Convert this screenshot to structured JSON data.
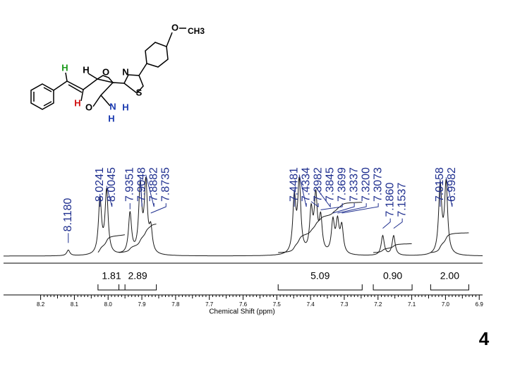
{
  "chart_data": {
    "type": "nmr",
    "x_label": "Chemical Shift (ppm)",
    "xlim": [
      8.31,
      6.89
    ],
    "xticks": [
      8.2,
      8.1,
      {
        "value": 8.0,
        "label": "8.0"
      },
      7.9,
      7.8,
      7.7,
      7.6,
      7.5,
      7.4,
      7.3,
      7.2,
      7.1,
      {
        "value": 7.0,
        "label": "7.0"
      },
      6.9
    ],
    "color": "#1a1a1a",
    "peaks": {
      "color": "#1f2f8f",
      "values": [
        8.118,
        8.0241,
        8.0045,
        7.9351,
        7.9048,
        7.8882,
        7.8735,
        7.4481,
        7.4334,
        7.3982,
        7.3845,
        7.3699,
        7.3337,
        7.32,
        7.3073,
        7.186,
        7.1537,
        7.0158,
        6.9982
      ],
      "value_labels": [
        "8.1180",
        "8.0241",
        "8.0045",
        "7.9351",
        "7.9048",
        "7.8882",
        "7.8735",
        "7.4481",
        "7.4334",
        "7.3982",
        "7.3845",
        "7.3699",
        "7.3337",
        "7.3200",
        "7.3073",
        "7.1860",
        "7.1537",
        "7.0158",
        "6.9982"
      ],
      "intensities": [
        0.08,
        0.78,
        0.9,
        0.58,
        0.95,
        0.98,
        0.33,
        0.78,
        1.0,
        0.58,
        0.78,
        0.48,
        0.45,
        0.43,
        0.38,
        0.28,
        0.28,
        0.98,
        1.0
      ]
    },
    "integrals": {
      "ranges": [
        [
          8.03,
          7.95
        ],
        [
          7.968,
          7.857
        ],
        [
          7.496,
          7.247
        ],
        [
          7.214,
          7.099
        ],
        [
          7.044,
          6.931
        ]
      ],
      "values": [
        1.81,
        2.89,
        5.09,
        0.9,
        2.0
      ],
      "value_labels": [
        "1.81",
        "2.89",
        "5.09",
        "0.90",
        "2.00"
      ]
    }
  },
  "structure": {
    "atoms": [
      "H",
      "H",
      "O",
      "N",
      "S",
      "H",
      "O",
      "N",
      "H",
      "H",
      "O",
      "CH3"
    ]
  },
  "compound_number": "4"
}
